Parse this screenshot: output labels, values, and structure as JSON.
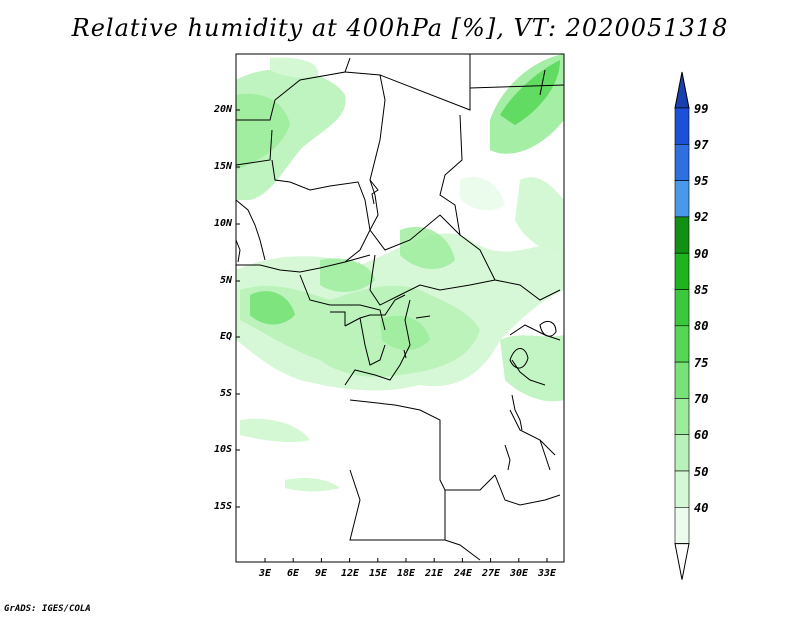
{
  "title": "Relative humidity at 400hPa [%], VT: 2020051318",
  "credit": "GrADS: IGES/COLA",
  "lat_labels": [
    "20N",
    "15N",
    "10N",
    "5N",
    "EQ",
    "5S",
    "10S",
    "15S"
  ],
  "lon_labels": [
    "3E",
    "6E",
    "9E",
    "12E",
    "15E",
    "18E",
    "21E",
    "24E",
    "27E",
    "30E",
    "33E"
  ],
  "colorbar": {
    "levels": [
      "99",
      "97",
      "95",
      "92",
      "90",
      "85",
      "80",
      "75",
      "70",
      "60",
      "50",
      "40"
    ],
    "colors": [
      "#1c50d8",
      "#2f70e0",
      "#4a98ea",
      "#138f13",
      "#1eb41e",
      "#3cc83c",
      "#55d755",
      "#78e278",
      "#9bec9b",
      "#b8f2b8",
      "#d4f8d4",
      "#ecfcec"
    ],
    "top_arrow_color": "#1a40b0",
    "bottom_arrow_color": "#ffffff"
  }
}
